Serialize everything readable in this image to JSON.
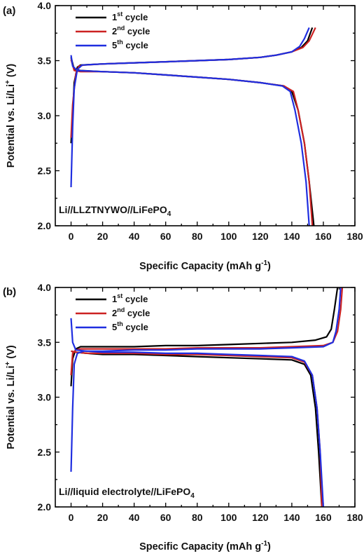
{
  "chart_data": [
    {
      "type": "line",
      "panel_label": "(a)",
      "annotation": {
        "prefix": "Li//LLZTNYWO//LiFePO",
        "subscript": "4"
      },
      "xlabel": {
        "prefix": "Specific Capacity (mAh g",
        "sup": "-1",
        "suffix": ")"
      },
      "ylabel": {
        "prefix": "Potential  vs. Li/Li",
        "sup": "+",
        "suffix": " (V)"
      },
      "xlim": [
        -10,
        180
      ],
      "ylim": [
        2.0,
        4.0
      ],
      "xticks": [
        0,
        20,
        40,
        60,
        80,
        100,
        120,
        140,
        160,
        180
      ],
      "yticks": [
        2.0,
        2.5,
        3.0,
        3.5,
        4.0
      ],
      "ytick_labels": [
        "2.0",
        "2.5",
        "3.0",
        "3.5",
        "4.0"
      ],
      "legend": {
        "position": "top-left"
      },
      "series": [
        {
          "name": "cycle",
          "cycle_num": "1",
          "cycle_sup": "st",
          "color": "#000000",
          "charge": [
            [
              0,
              2.75
            ],
            [
              1,
              3.0
            ],
            [
              2,
              3.3
            ],
            [
              4,
              3.44
            ],
            [
              6,
              3.46
            ],
            [
              20,
              3.47
            ],
            [
              40,
              3.48
            ],
            [
              60,
              3.49
            ],
            [
              80,
              3.5
            ],
            [
              100,
              3.51
            ],
            [
              120,
              3.53
            ],
            [
              130,
              3.55
            ],
            [
              140,
              3.58
            ],
            [
              146,
              3.62
            ],
            [
              150,
              3.68
            ],
            [
              153,
              3.8
            ]
          ],
          "discharge": [
            [
              0,
              3.53
            ],
            [
              2,
              3.42
            ],
            [
              6,
              3.41
            ],
            [
              20,
              3.4
            ],
            [
              40,
              3.39
            ],
            [
              60,
              3.37
            ],
            [
              80,
              3.35
            ],
            [
              100,
              3.33
            ],
            [
              120,
              3.3
            ],
            [
              135,
              3.27
            ],
            [
              140,
              3.22
            ],
            [
              144,
              3.05
            ],
            [
              148,
              2.75
            ],
            [
              151,
              2.4
            ],
            [
              154,
              2.0
            ]
          ]
        },
        {
          "name": "cycle",
          "cycle_num": "2",
          "cycle_sup": "nd",
          "color": "#cc2222",
          "charge": [
            [
              0,
              2.8
            ],
            [
              1,
              3.1
            ],
            [
              3,
              3.38
            ],
            [
              5,
              3.45
            ],
            [
              8,
              3.46
            ],
            [
              20,
              3.47
            ],
            [
              40,
              3.48
            ],
            [
              60,
              3.49
            ],
            [
              80,
              3.5
            ],
            [
              100,
              3.51
            ],
            [
              120,
              3.53
            ],
            [
              130,
              3.55
            ],
            [
              140,
              3.58
            ],
            [
              147,
              3.62
            ],
            [
              151,
              3.68
            ],
            [
              155,
              3.8
            ]
          ],
          "discharge": [
            [
              0,
              3.51
            ],
            [
              2,
              3.41
            ],
            [
              6,
              3.4
            ],
            [
              20,
              3.4
            ],
            [
              40,
              3.39
            ],
            [
              60,
              3.37
            ],
            [
              80,
              3.35
            ],
            [
              100,
              3.33
            ],
            [
              120,
              3.3
            ],
            [
              135,
              3.27
            ],
            [
              141,
              3.22
            ],
            [
              144,
              3.05
            ],
            [
              148,
              2.75
            ],
            [
              151,
              2.4
            ],
            [
              153,
              2.0
            ]
          ]
        },
        {
          "name": "cycle",
          "cycle_num": "5",
          "cycle_sup": "th",
          "color": "#1f2ee0",
          "charge": [
            [
              0,
              2.35
            ],
            [
              1,
              2.9
            ],
            [
              2,
              3.25
            ],
            [
              4,
              3.42
            ],
            [
              7,
              3.46
            ],
            [
              20,
              3.47
            ],
            [
              40,
              3.48
            ],
            [
              60,
              3.49
            ],
            [
              80,
              3.5
            ],
            [
              100,
              3.51
            ],
            [
              120,
              3.53
            ],
            [
              130,
              3.55
            ],
            [
              140,
              3.58
            ],
            [
              145,
              3.63
            ],
            [
              148,
              3.7
            ],
            [
              151,
              3.8
            ]
          ],
          "discharge": [
            [
              0,
              3.55
            ],
            [
              1,
              3.45
            ],
            [
              4,
              3.41
            ],
            [
              20,
              3.4
            ],
            [
              40,
              3.39
            ],
            [
              60,
              3.37
            ],
            [
              80,
              3.35
            ],
            [
              100,
              3.33
            ],
            [
              120,
              3.3
            ],
            [
              134,
              3.27
            ],
            [
              139,
              3.22
            ],
            [
              142,
              3.05
            ],
            [
              146,
              2.75
            ],
            [
              149,
              2.4
            ],
            [
              151,
              2.0
            ]
          ]
        }
      ]
    },
    {
      "type": "line",
      "panel_label": "(b)",
      "annotation": {
        "prefix": "Li//liquid electrolyte//LiFePO",
        "subscript": "4"
      },
      "xlabel": {
        "prefix": "Specific Capacity (mAh g",
        "sup": "-1",
        "suffix": ")"
      },
      "ylabel": {
        "prefix": "Potential  vs. Li/Li",
        "sup": "+",
        "suffix": " (V)"
      },
      "xlim": [
        -10,
        180
      ],
      "ylim": [
        2.0,
        4.0
      ],
      "xticks": [
        0,
        20,
        40,
        60,
        80,
        100,
        120,
        140,
        160,
        180
      ],
      "yticks": [
        2.0,
        2.5,
        3.0,
        3.5,
        4.0
      ],
      "ytick_labels": [
        "2.0",
        "2.5",
        "3.0",
        "3.5",
        "4.0"
      ],
      "legend": {
        "position": "top-left"
      },
      "series": [
        {
          "name": "cycle",
          "cycle_num": "1",
          "cycle_sup": "st",
          "color": "#000000",
          "charge": [
            [
              0,
              3.1
            ],
            [
              1,
              3.35
            ],
            [
              3,
              3.44
            ],
            [
              6,
              3.46
            ],
            [
              20,
              3.46
            ],
            [
              40,
              3.46
            ],
            [
              60,
              3.47
            ],
            [
              80,
              3.47
            ],
            [
              100,
              3.48
            ],
            [
              120,
              3.49
            ],
            [
              140,
              3.5
            ],
            [
              155,
              3.52
            ],
            [
              162,
              3.55
            ],
            [
              165,
              3.62
            ],
            [
              167,
              3.8
            ],
            [
              169,
              4.0
            ]
          ],
          "discharge": [
            [
              0,
              3.42
            ],
            [
              3,
              3.41
            ],
            [
              10,
              3.4
            ],
            [
              20,
              3.39
            ],
            [
              40,
              3.39
            ],
            [
              60,
              3.38
            ],
            [
              80,
              3.37
            ],
            [
              100,
              3.36
            ],
            [
              120,
              3.35
            ],
            [
              140,
              3.34
            ],
            [
              148,
              3.3
            ],
            [
              152,
              3.2
            ],
            [
              155,
              2.9
            ],
            [
              157,
              2.5
            ],
            [
              159,
              2.0
            ]
          ]
        },
        {
          "name": "cycle",
          "cycle_num": "2",
          "cycle_sup": "nd",
          "color": "#cc2222",
          "charge": [
            [
              0,
              3.2
            ],
            [
              1,
              3.4
            ],
            [
              3,
              3.43
            ],
            [
              6,
              3.44
            ],
            [
              20,
              3.44
            ],
            [
              40,
              3.44
            ],
            [
              60,
              3.44
            ],
            [
              80,
              3.45
            ],
            [
              100,
              3.45
            ],
            [
              120,
              3.45
            ],
            [
              140,
              3.46
            ],
            [
              160,
              3.47
            ],
            [
              166,
              3.5
            ],
            [
              169,
              3.6
            ],
            [
              171,
              3.8
            ],
            [
              172,
              4.0
            ]
          ],
          "discharge": [
            [
              0,
              3.42
            ],
            [
              3,
              3.41
            ],
            [
              10,
              3.4
            ],
            [
              20,
              3.4
            ],
            [
              40,
              3.4
            ],
            [
              60,
              3.39
            ],
            [
              80,
              3.39
            ],
            [
              100,
              3.38
            ],
            [
              120,
              3.37
            ],
            [
              140,
              3.36
            ],
            [
              148,
              3.32
            ],
            [
              153,
              3.2
            ],
            [
              156,
              2.9
            ],
            [
              158,
              2.5
            ],
            [
              159,
              2.0
            ]
          ]
        },
        {
          "name": "cycle",
          "cycle_num": "5",
          "cycle_sup": "th",
          "color": "#1f2ee0",
          "charge": [
            [
              0,
              2.32
            ],
            [
              1,
              2.9
            ],
            [
              2,
              3.3
            ],
            [
              4,
              3.4
            ],
            [
              8,
              3.42
            ],
            [
              20,
              3.42
            ],
            [
              40,
              3.43
            ],
            [
              60,
              3.43
            ],
            [
              80,
              3.44
            ],
            [
              100,
              3.44
            ],
            [
              120,
              3.44
            ],
            [
              140,
              3.45
            ],
            [
              160,
              3.46
            ],
            [
              166,
              3.5
            ],
            [
              168,
              3.6
            ],
            [
              170,
              3.8
            ],
            [
              171,
              4.0
            ]
          ],
          "discharge": [
            [
              0,
              3.72
            ],
            [
              1,
              3.5
            ],
            [
              3,
              3.43
            ],
            [
              10,
              3.42
            ],
            [
              20,
              3.41
            ],
            [
              40,
              3.41
            ],
            [
              60,
              3.4
            ],
            [
              80,
              3.4
            ],
            [
              100,
              3.39
            ],
            [
              120,
              3.38
            ],
            [
              140,
              3.37
            ],
            [
              148,
              3.33
            ],
            [
              153,
              3.2
            ],
            [
              156,
              2.9
            ],
            [
              158,
              2.5
            ],
            [
              160,
              2.0
            ]
          ]
        }
      ]
    }
  ]
}
